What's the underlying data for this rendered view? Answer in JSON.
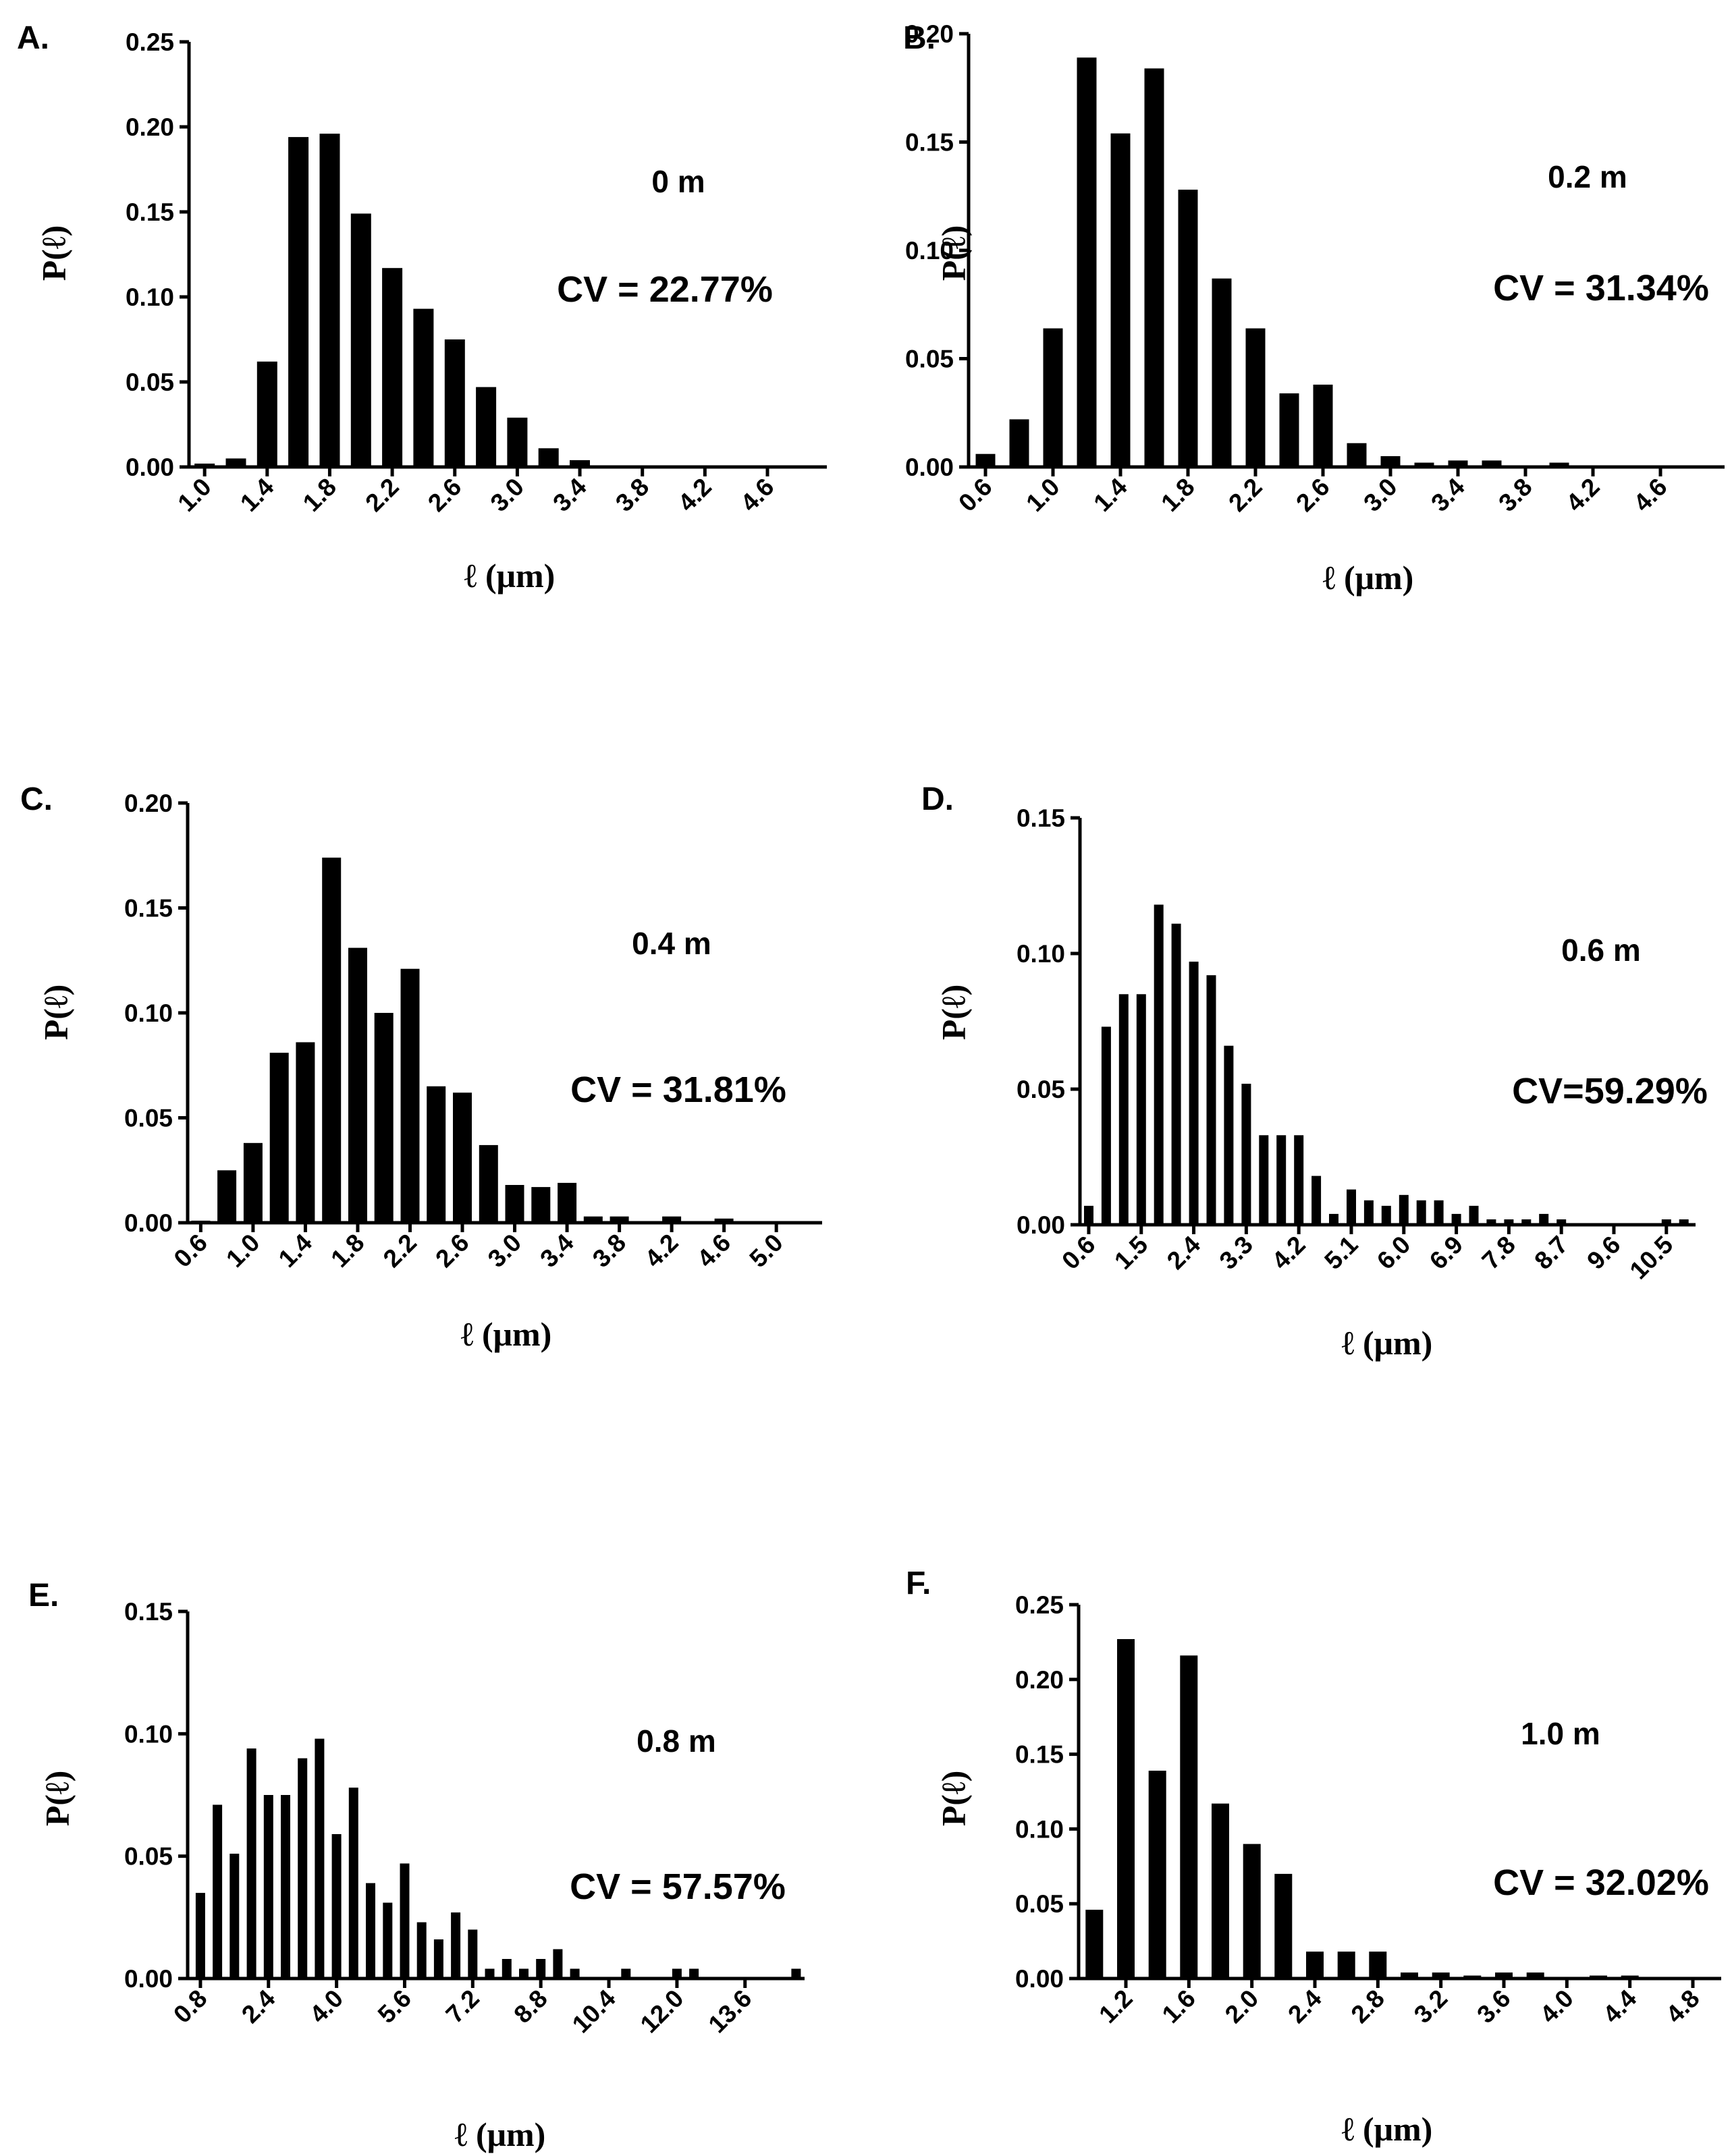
{
  "chart_data": [
    {
      "panel_label": "A.",
      "type": "bar",
      "annotation": "0 m",
      "cv_text": "CV = 22.77%",
      "ylabel": "P(ℓ)",
      "xlabel": "ℓ (μm)",
      "ylim": [
        0,
        0.25
      ],
      "yticks": [
        "0.00",
        "0.05",
        "0.10",
        "0.15",
        "0.20",
        "0.25"
      ],
      "xticks": [
        "1.0",
        "1.4",
        "1.8",
        "2.2",
        "2.6",
        "3.0",
        "3.4",
        "3.8",
        "4.2",
        "4.6"
      ],
      "x": [
        1.0,
        1.2,
        1.4,
        1.6,
        1.8,
        2.0,
        2.2,
        2.4,
        2.6,
        2.8,
        3.0,
        3.2,
        3.4,
        3.6,
        3.8
      ],
      "values": [
        0.002,
        0.005,
        0.062,
        0.194,
        0.196,
        0.149,
        0.117,
        0.093,
        0.075,
        0.047,
        0.029,
        0.011,
        0.004,
        0.0,
        0.001
      ]
    },
    {
      "panel_label": "B.",
      "type": "bar",
      "annotation": "0.2 m",
      "cv_text": "CV = 31.34%",
      "ylabel": "P(ℓ)",
      "xlabel": "ℓ (μm)",
      "ylim": [
        0,
        0.2
      ],
      "yticks": [
        "0.00",
        "0.05",
        "0.10",
        "0.15",
        "0.20"
      ],
      "xticks": [
        "0.6",
        "1.0",
        "1.4",
        "1.8",
        "2.2",
        "2.6",
        "3.0",
        "3.4",
        "3.8",
        "4.2",
        "4.6"
      ],
      "x": [
        0.6,
        0.8,
        1.0,
        1.2,
        1.4,
        1.6,
        1.8,
        2.0,
        2.2,
        2.4,
        2.6,
        2.8,
        3.0,
        3.2,
        3.4,
        3.6,
        3.8,
        4.0
      ],
      "values": [
        0.006,
        0.022,
        0.064,
        0.189,
        0.154,
        0.184,
        0.128,
        0.087,
        0.064,
        0.034,
        0.038,
        0.011,
        0.005,
        0.002,
        0.003,
        0.003,
        0.0,
        0.002
      ]
    },
    {
      "panel_label": "C.",
      "type": "bar",
      "annotation": "0.4 m",
      "cv_text": "CV = 31.81%",
      "ylabel": "P(ℓ)",
      "xlabel": "ℓ (μm)",
      "ylim": [
        0,
        0.2
      ],
      "yticks": [
        "0.00",
        "0.05",
        "0.10",
        "0.15",
        "0.20"
      ],
      "xticks": [
        "0.6",
        "1.0",
        "1.4",
        "1.8",
        "2.2",
        "2.6",
        "3.0",
        "3.4",
        "3.8",
        "4.2",
        "4.6",
        "5.0"
      ],
      "x": [
        0.6,
        0.8,
        1.0,
        1.2,
        1.4,
        1.6,
        1.8,
        2.0,
        2.2,
        2.4,
        2.6,
        2.8,
        3.0,
        3.2,
        3.4,
        3.6,
        3.8,
        4.0,
        4.2,
        4.4,
        4.6
      ],
      "values": [
        0.001,
        0.025,
        0.038,
        0.081,
        0.086,
        0.174,
        0.131,
        0.1,
        0.121,
        0.065,
        0.062,
        0.037,
        0.018,
        0.017,
        0.019,
        0.003,
        0.003,
        0.0,
        0.003,
        0.0,
        0.002
      ]
    },
    {
      "panel_label": "D.",
      "type": "bar",
      "annotation": "0.6 m",
      "cv_text": "CV=59.29%",
      "ylabel": "P(ℓ)",
      "xlabel": "ℓ (μm)",
      "ylim": [
        0,
        0.15
      ],
      "yticks": [
        "0.00",
        "0.05",
        "0.10",
        "0.15"
      ],
      "xticks": [
        "0.6",
        "1.5",
        "2.4",
        "3.3",
        "4.2",
        "5.1",
        "6.0",
        "6.9",
        "7.8",
        "8.7",
        "9.6",
        "10.5"
      ],
      "x": [
        0.6,
        0.9,
        1.2,
        1.5,
        1.8,
        2.1,
        2.4,
        2.7,
        3.0,
        3.3,
        3.6,
        3.9,
        4.2,
        4.5,
        4.8,
        5.1,
        5.4,
        5.7,
        6.0,
        6.3,
        6.6,
        6.9,
        7.2,
        7.5,
        7.8,
        8.1,
        8.4,
        8.7,
        9.0,
        9.3,
        9.6,
        9.9,
        10.2,
        10.5,
        10.8
      ],
      "values": [
        0.007,
        0.073,
        0.085,
        0.085,
        0.118,
        0.111,
        0.097,
        0.092,
        0.066,
        0.052,
        0.033,
        0.033,
        0.033,
        0.018,
        0.004,
        0.013,
        0.009,
        0.007,
        0.011,
        0.009,
        0.009,
        0.004,
        0.007,
        0.002,
        0.002,
        0.002,
        0.004,
        0.002,
        0.0,
        0.0,
        0.0,
        0.0,
        0.0,
        0.002,
        0.002
      ]
    },
    {
      "panel_label": "E.",
      "type": "bar",
      "annotation": "0.8 m",
      "cv_text": "CV = 57.57%",
      "ylabel": "P(ℓ)",
      "xlabel": "ℓ (μm)",
      "ylim": [
        0,
        0.15
      ],
      "yticks": [
        "0.00",
        "0.05",
        "0.10",
        "0.15"
      ],
      "xticks": [
        "0.8",
        "2.4",
        "4.0",
        "5.6",
        "7.2",
        "8.8",
        "10.4",
        "12.0",
        "13.6"
      ],
      "x": [
        0.8,
        1.2,
        1.6,
        2.0,
        2.4,
        2.8,
        3.2,
        3.6,
        4.0,
        4.4,
        4.8,
        5.2,
        5.6,
        6.0,
        6.4,
        6.8,
        7.2,
        7.6,
        8.0,
        8.4,
        8.8,
        9.2,
        9.6,
        10.0,
        10.4,
        10.8,
        11.2,
        11.6,
        12.0,
        12.4,
        12.8,
        13.2,
        13.6,
        14.0,
        14.4,
        14.8
      ],
      "values": [
        0.035,
        0.071,
        0.051,
        0.094,
        0.075,
        0.075,
        0.09,
        0.098,
        0.059,
        0.078,
        0.039,
        0.031,
        0.047,
        0.023,
        0.016,
        0.027,
        0.02,
        0.004,
        0.008,
        0.004,
        0.008,
        0.012,
        0.004,
        0.0,
        0.0,
        0.004,
        0.0,
        0.0,
        0.004,
        0.004,
        0.0,
        0.0,
        0.0,
        0.0,
        0.0,
        0.004
      ]
    },
    {
      "panel_label": "F.",
      "type": "bar",
      "annotation": "1.0 m",
      "cv_text": "CV = 32.02%",
      "ylabel": "P(ℓ)",
      "xlabel": "ℓ (μm)",
      "ylim": [
        0,
        0.25
      ],
      "yticks": [
        "0.00",
        "0.05",
        "0.10",
        "0.15",
        "0.20",
        "0.25"
      ],
      "xticks": [
        "1.2",
        "1.6",
        "2.0",
        "2.4",
        "2.8",
        "3.2",
        "3.6",
        "4.0",
        "4.4",
        "4.8"
      ],
      "x": [
        1.0,
        1.2,
        1.4,
        1.6,
        1.8,
        2.0,
        2.2,
        2.4,
        2.6,
        2.8,
        3.0,
        3.2,
        3.4,
        3.6,
        3.8,
        4.0,
        4.2,
        4.4
      ],
      "values": [
        0.046,
        0.227,
        0.139,
        0.216,
        0.117,
        0.09,
        0.07,
        0.018,
        0.018,
        0.018,
        0.004,
        0.004,
        0.002,
        0.004,
        0.004,
        0.0,
        0.002,
        0.002
      ]
    }
  ]
}
